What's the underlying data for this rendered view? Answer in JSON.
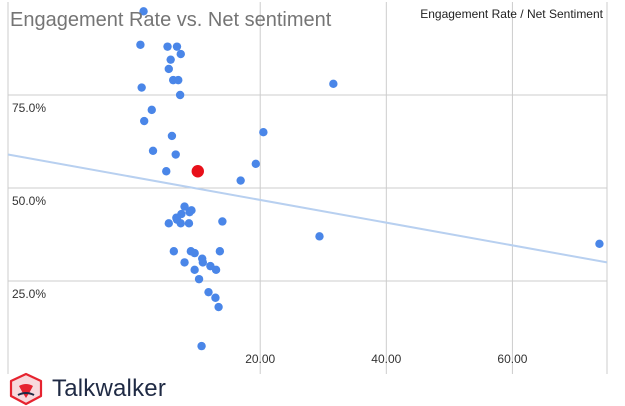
{
  "chart_data": {
    "type": "scatter",
    "title": "Engagement Rate vs. Net sentiment",
    "legend": {
      "label": "Engagement Rate / Net Sentiment",
      "position": "top-right"
    },
    "xlim": [
      -20,
      75
    ],
    "ylim": [
      0,
      100
    ],
    "x_ticks": [
      {
        "value": 20,
        "label": "20.00"
      },
      {
        "value": 40,
        "label": "40.00"
      },
      {
        "value": 60,
        "label": "60.00"
      }
    ],
    "y_ticks": [
      {
        "value": 25,
        "label": "25.0%"
      },
      {
        "value": 50,
        "label": "50.0%"
      },
      {
        "value": 75,
        "label": "75.0%"
      }
    ],
    "grid": true,
    "colors": {
      "point": "#4a86e8",
      "highlight": "#e8101a",
      "trendline": "#b8d0f0",
      "grid": "#cccccc"
    },
    "series": [
      {
        "x": [
          1.0,
          1.5,
          1.2,
          1.6,
          3.0,
          2.8,
          5.3,
          5.8,
          6.8,
          7.4,
          5.5,
          6.2,
          7.0,
          7.3,
          6.0,
          6.6,
          5.1,
          5.5,
          6.3,
          9.6,
          10.8,
          9.6,
          10.3,
          11.8,
          12.9,
          13.4,
          10.7,
          8.0,
          9.1,
          8.8,
          7.5,
          6.7,
          6.8,
          7.4,
          8.7,
          14.0,
          13.0,
          10.9,
          12.1,
          13.6,
          9.0,
          8.0,
          19.3,
          20.5,
          16.9,
          29.4,
          31.6,
          73.8
        ],
        "y": [
          88.5,
          97.5,
          77.0,
          68.0,
          60.0,
          71.0,
          88.0,
          84.5,
          88.0,
          86.0,
          82.0,
          79.0,
          79.0,
          75.0,
          64.0,
          59.0,
          54.5,
          40.5,
          33.0,
          32.5,
          31.0,
          28.0,
          25.5,
          22.0,
          20.5,
          18.0,
          7.5,
          45.0,
          44.0,
          43.5,
          43.0,
          42.0,
          41.5,
          40.5,
          40.5,
          41.0,
          28.0,
          30.0,
          29.0,
          33.0,
          33.0,
          30.0,
          56.5,
          65.0,
          52.0,
          37.0,
          78.0,
          35.0
        ]
      }
    ],
    "highlight": {
      "x": 10.1,
      "y": 54.5
    },
    "trendline": {
      "x": [
        -20,
        75
      ],
      "y": [
        59,
        30
      ]
    }
  },
  "brand": {
    "name": "Talkwalker",
    "icon": "talkwalker-logo-icon"
  }
}
